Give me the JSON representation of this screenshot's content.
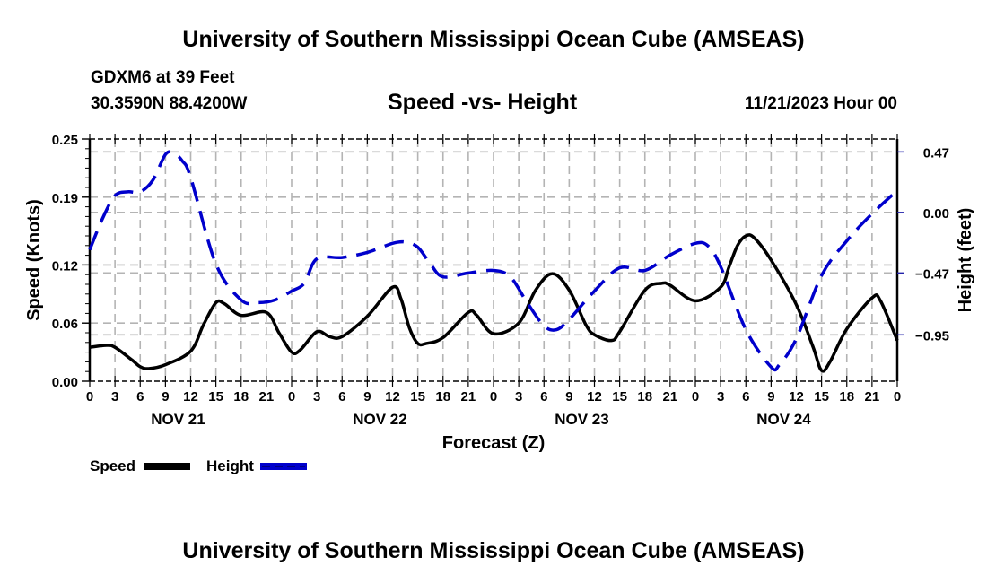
{
  "header": {
    "title": "University of Southern Mississippi Ocean Cube (AMSEAS)",
    "station": "GDXM6 at 39 Feet",
    "location": "30.3590N  88.4200W",
    "plot_title": "Speed -vs- Height",
    "run_time": "11/21/2023 Hour 00"
  },
  "footer": {
    "title": "University of Southern Mississippi Ocean Cube (AMSEAS)"
  },
  "chart_data": {
    "type": "line",
    "title": "Speed -vs- Height",
    "xlabel": "Forecast (Z)",
    "ylabel": "Speed (Knots)",
    "y2label": "Height (feet)",
    "xlim": [
      0,
      96
    ],
    "ylim": [
      0,
      0.25
    ],
    "y2lim": [
      -1.31,
      0.57
    ],
    "grid": true,
    "x_ticks": [
      0,
      3,
      6,
      9,
      12,
      15,
      18,
      21,
      24,
      27,
      30,
      33,
      36,
      39,
      42,
      45,
      48,
      51,
      54,
      57,
      60,
      63,
      66,
      69,
      72,
      75,
      78,
      81,
      84,
      87,
      90,
      93,
      96
    ],
    "x_tick_labels": [
      "0",
      "3",
      "6",
      "9",
      "12",
      "15",
      "18",
      "21",
      "0",
      "3",
      "6",
      "9",
      "12",
      "15",
      "18",
      "21",
      "0",
      "3",
      "6",
      "9",
      "12",
      "15",
      "18",
      "21",
      "0",
      "3",
      "6",
      "9",
      "12",
      "15",
      "18",
      "21",
      "0"
    ],
    "day_labels": [
      {
        "label": "NOV 21",
        "hour": 10.5
      },
      {
        "label": "NOV 22",
        "hour": 34.5
      },
      {
        "label": "NOV 23",
        "hour": 58.5
      },
      {
        "label": "NOV 24",
        "hour": 82.5
      }
    ],
    "y_ticks": [
      0.0,
      0.06,
      0.12,
      0.19,
      0.25
    ],
    "y_tick_labels": [
      "0.00",
      "0.06",
      "0.12",
      "0.19",
      "0.25"
    ],
    "y2_ticks": [
      0.47,
      0.0,
      -0.47,
      -0.95
    ],
    "y2_tick_labels": [
      "0.47",
      "0.00",
      "−0.47",
      "−0.95"
    ],
    "legend": [
      {
        "name": "Speed",
        "color": "#000000",
        "style": "solid"
      },
      {
        "name": "Height",
        "color": "#0000cc",
        "style": "dashed"
      }
    ],
    "legend_position": "bottom-left",
    "series": [
      {
        "name": "Speed",
        "axis": "left",
        "color": "#000000",
        "style": "solid",
        "x": [
          0,
          2,
          3,
          5,
          6,
          7,
          9,
          12,
          13.5,
          15,
          16,
          18,
          21,
          22.5,
          24,
          25,
          27,
          28.5,
          30,
          33,
          36,
          37,
          38,
          39,
          40,
          42,
          45,
          46,
          48,
          51,
          53,
          55,
          57,
          59,
          60,
          62,
          63,
          66,
          68,
          69,
          72,
          75,
          76,
          77,
          78,
          79,
          81,
          84,
          86,
          87,
          88,
          90,
          93,
          94,
          96
        ],
        "values": [
          0.035,
          0.037,
          0.035,
          0.022,
          0.015,
          0.013,
          0.017,
          0.031,
          0.058,
          0.081,
          0.08,
          0.068,
          0.071,
          0.05,
          0.03,
          0.032,
          0.051,
          0.046,
          0.046,
          0.067,
          0.097,
          0.085,
          0.055,
          0.039,
          0.039,
          0.045,
          0.071,
          0.068,
          0.049,
          0.06,
          0.094,
          0.111,
          0.094,
          0.058,
          0.048,
          0.042,
          0.051,
          0.094,
          0.101,
          0.099,
          0.083,
          0.097,
          0.118,
          0.14,
          0.15,
          0.148,
          0.125,
          0.079,
          0.035,
          0.011,
          0.02,
          0.054,
          0.086,
          0.083,
          0.042
        ]
      },
      {
        "name": "Height",
        "axis": "right",
        "color": "#0000cc",
        "style": "dashed",
        "x": [
          0,
          1.5,
          3,
          4.5,
          6,
          7.5,
          9,
          10,
          11,
          12,
          15,
          18,
          20,
          22,
          24,
          25.5,
          27,
          30,
          33,
          36,
          37.5,
          39,
          40.5,
          42,
          45,
          48,
          50,
          52,
          54,
          55.5,
          57,
          60,
          63,
          66,
          69,
          72,
          73.5,
          75,
          78,
          81,
          82,
          84,
          87,
          90,
          93,
          96
        ],
        "values": [
          -0.29,
          -0.05,
          0.13,
          0.16,
          0.16,
          0.25,
          0.45,
          0.46,
          0.4,
          0.27,
          -0.4,
          -0.68,
          -0.7,
          -0.68,
          -0.61,
          -0.55,
          -0.36,
          -0.35,
          -0.31,
          -0.24,
          -0.23,
          -0.27,
          -0.4,
          -0.5,
          -0.47,
          -0.45,
          -0.5,
          -0.7,
          -0.88,
          -0.91,
          -0.83,
          -0.61,
          -0.43,
          -0.45,
          -0.33,
          -0.24,
          -0.26,
          -0.42,
          -0.91,
          -1.2,
          -1.18,
          -0.98,
          -0.49,
          -0.22,
          -0.01,
          0.17
        ]
      }
    ]
  }
}
